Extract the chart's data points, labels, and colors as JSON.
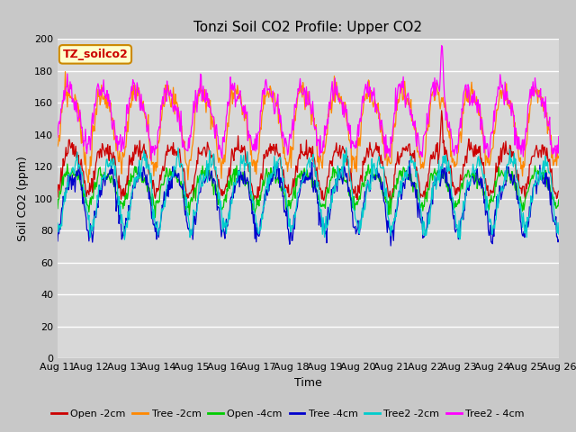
{
  "title": "Tonzi Soil CO2 Profile: Upper CO2",
  "ylabel": "Soil CO2 (ppm)",
  "xlabel": "Time",
  "ylim": [
    0,
    200
  ],
  "yticks": [
    0,
    20,
    40,
    60,
    80,
    100,
    120,
    140,
    160,
    180,
    200
  ],
  "x_labels": [
    "Aug 11",
    "Aug 12",
    "Aug 13",
    "Aug 14",
    "Aug 15",
    "Aug 16",
    "Aug 17",
    "Aug 18",
    "Aug 19",
    "Aug 20",
    "Aug 21",
    "Aug 22",
    "Aug 23",
    "Aug 24",
    "Aug 25",
    "Aug 26"
  ],
  "series": [
    {
      "label": "Open -2cm",
      "color": "#cc0000"
    },
    {
      "label": "Tree -2cm",
      "color": "#ff8800"
    },
    {
      "label": "Open -4cm",
      "color": "#00cc00"
    },
    {
      "label": "Tree -4cm",
      "color": "#0000cc"
    },
    {
      "label": "Tree2 -2cm",
      "color": "#00cccc"
    },
    {
      "label": "Tree2 - 4cm",
      "color": "#ff00ff"
    }
  ],
  "legend_label": "TZ_soilco2",
  "legend_text_color": "#cc0000",
  "legend_box_facecolor": "#ffffcc",
  "legend_box_edgecolor": "#cc8800",
  "fig_facecolor": "#c8c8c8",
  "plot_facecolor": "#d8d8d8",
  "grid_color": "#ffffff",
  "title_fontsize": 11,
  "axis_fontsize": 9,
  "tick_fontsize": 8
}
